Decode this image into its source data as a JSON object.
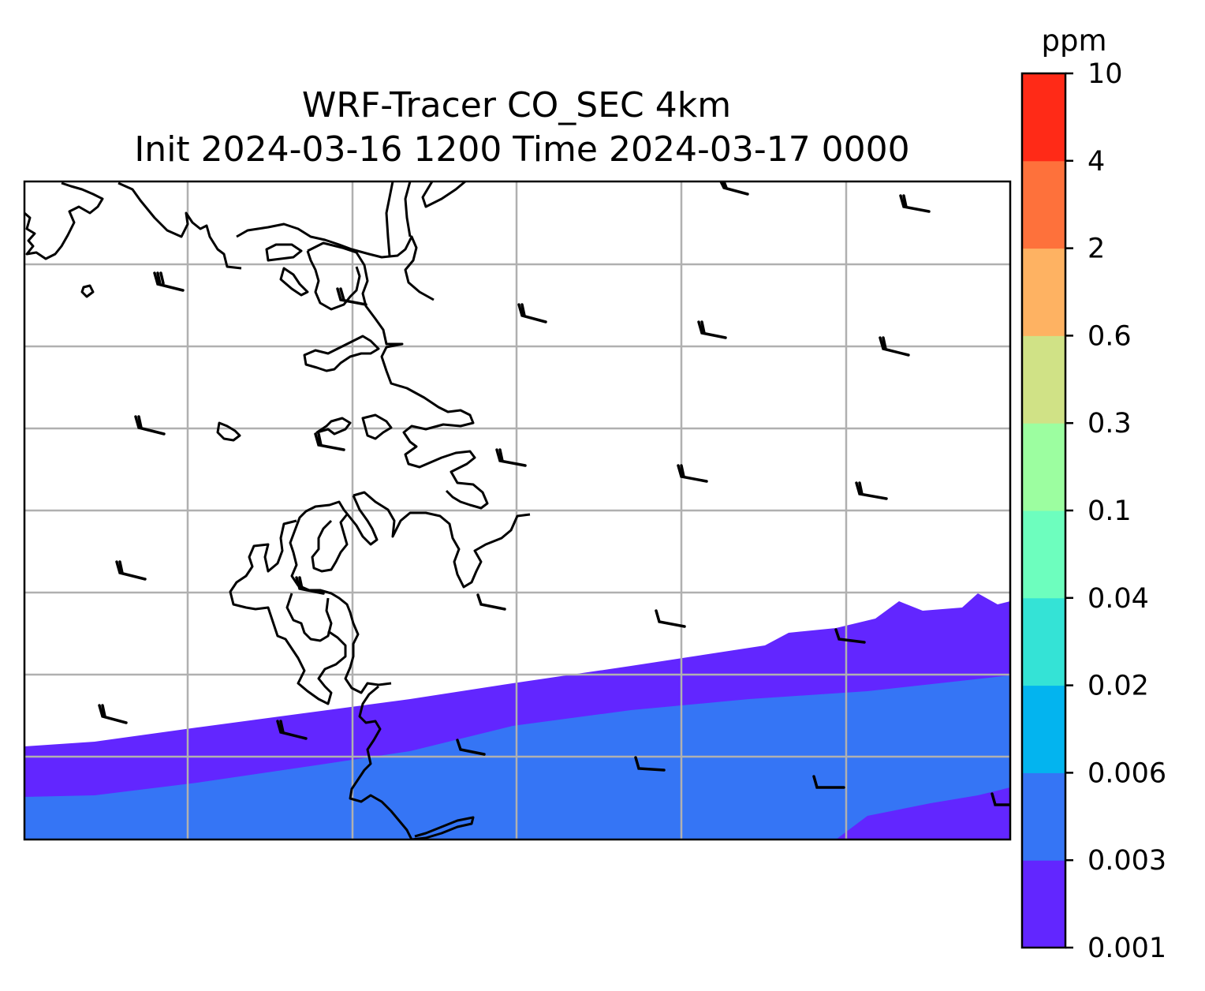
{
  "title": {
    "line1": "WRF-Tracer CO_SEC 4km",
    "line2": "Init 2024-03-16 1200 Time 2024-03-17 0000"
  },
  "colorbar": {
    "unit": "ppm",
    "levels": [
      "0.001",
      "0.003",
      "0.006",
      "0.02",
      "0.04",
      "0.1",
      "0.3",
      "0.6",
      "2",
      "4",
      "10"
    ],
    "colors": [
      "#6226ff",
      "#3575f5",
      "#03b4ef",
      "#34e3d6",
      "#6dfebe",
      "#9cfea0",
      "#d0e286",
      "#feb262",
      "#fe713b",
      "#ff2a17"
    ]
  },
  "map": {
    "fill_levels_shown": [
      "0.001-0.003",
      "0.003-0.006"
    ],
    "gridlines": true,
    "coastlines": true,
    "wind_barbs": true
  }
}
